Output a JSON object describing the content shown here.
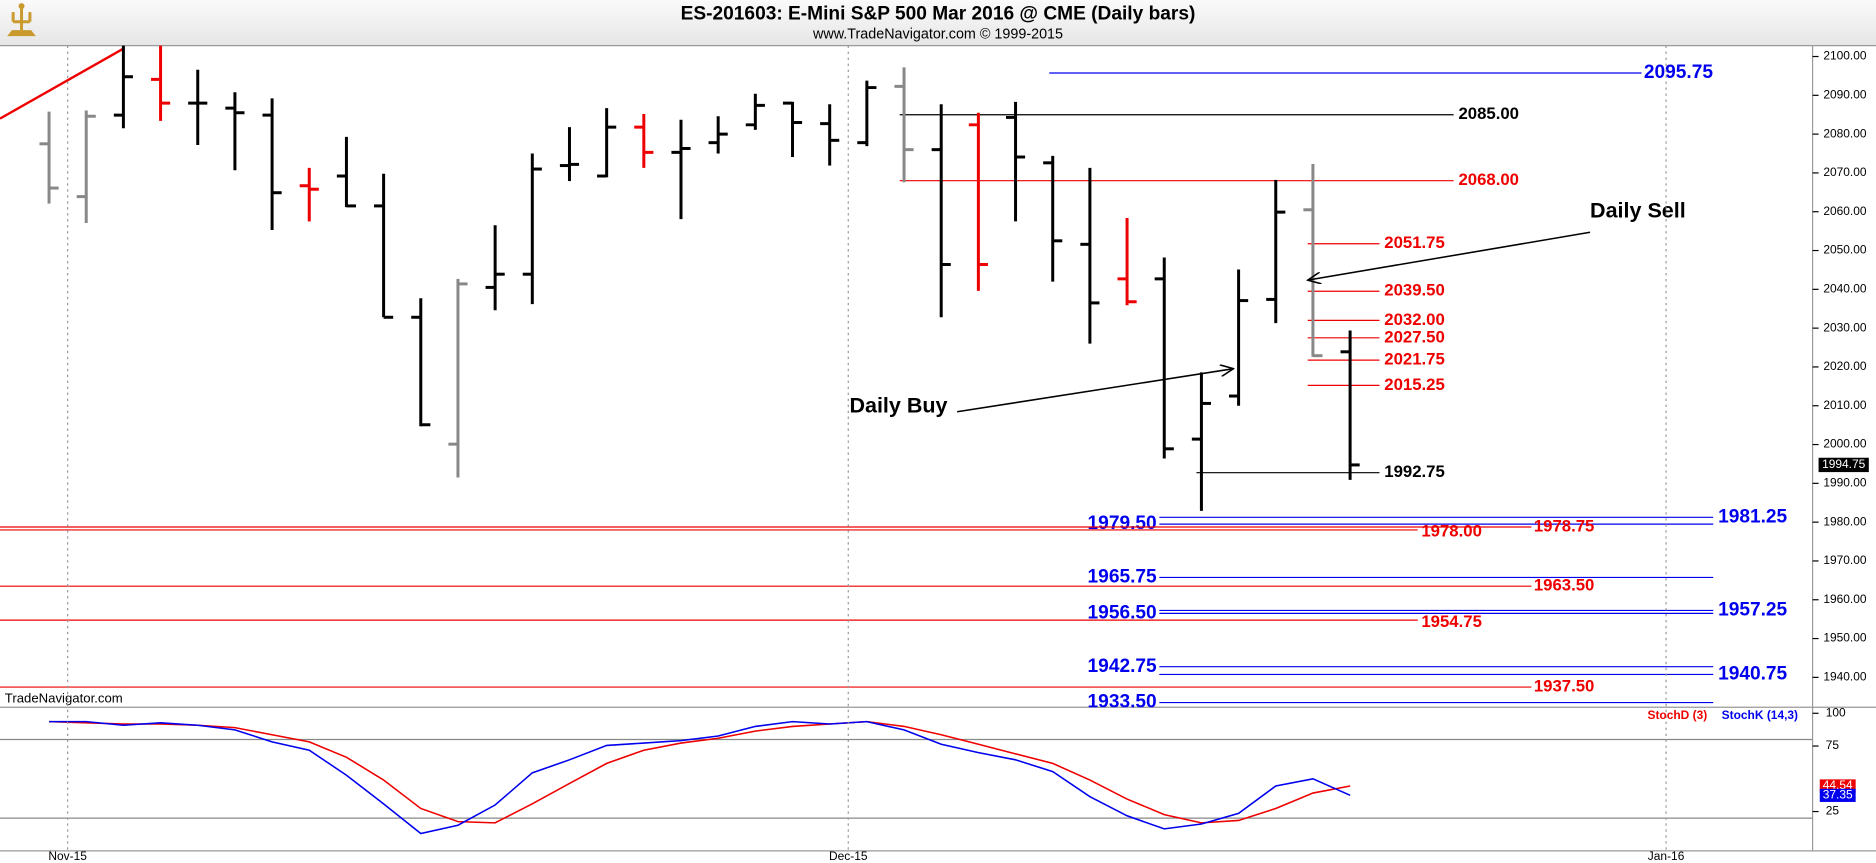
{
  "header": {
    "title": "ES-201603:  E-Mini S&P 500 Mar 2016 @ CME  (Daily bars)",
    "subtitle": "www.TradeNavigator.com © 1999-2015",
    "watermark": "TradeNavigator.com"
  },
  "chart_data": [
    {
      "type": "ohlc",
      "categories": [
        null,
        null,
        null,
        null,
        null,
        null,
        null,
        null,
        null,
        null,
        null,
        null,
        null,
        null,
        null,
        null,
        null,
        null,
        null,
        null,
        null,
        null,
        null,
        null,
        null,
        null,
        null,
        null,
        null,
        null,
        null,
        null,
        null,
        null,
        null,
        null
      ],
      "open": [
        2077.5,
        2063.9,
        2084.9,
        2094.1,
        2088.0,
        2086.7,
        2084.9,
        2066.7,
        2069.2,
        2061.5,
        2032.8,
        2000.1,
        2040.5,
        2043.9,
        2071.9,
        2069.2,
        2081.8,
        2075.3,
        2077.8,
        2082.4,
        2088.0,
        2082.7,
        2077.8,
        2092.3,
        2076.0,
        2082.4,
        2084.3,
        2072.6,
        2051.6,
        2042.7,
        2042.7,
        2001.4,
        2012.5,
        2037.4,
        2060.5,
        2023.9
      ],
      "high": [
        2085.8,
        2086.1,
        2103,
        2103,
        2096.6,
        2090.8,
        2089.2,
        2071.3,
        2079.3,
        2069.8,
        2037.7,
        2042.7,
        2056.5,
        2075.0,
        2081.8,
        2086.7,
        2085.2,
        2083.7,
        2084.6,
        2090.4,
        2088.3,
        2087.7,
        2093.8,
        2097.2,
        2087.7,
        2085.5,
        2088.3,
        2074.4,
        2071.3,
        2058.4,
        2048.2,
        2018.6,
        2045.1,
        2068.2,
        2072.3,
        2029.4
      ],
      "low": [
        2062.1,
        2057.1,
        2081.5,
        2083.4,
        2077.2,
        2070.7,
        2055.3,
        2057.5,
        2061.2,
        2032.8,
        2004.7,
        1991.5,
        2034.6,
        2036.2,
        2067.9,
        2068.9,
        2071.3,
        2058.1,
        2075.0,
        2081.1,
        2074.1,
        2071.9,
        2076.9,
        2067.6,
        2032.8,
        2039.6,
        2057.5,
        2042.0,
        2026.0,
        2035.9,
        1996.4,
        1982.9,
        2010.0,
        2031.3,
        2022.6,
        1990.9
      ],
      "close": [
        2066.1,
        2084.6,
        2094.8,
        2088.0,
        2088.0,
        2085.5,
        2064.9,
        2065.8,
        2061.5,
        2032.8,
        2005.1,
        2041.4,
        2043.9,
        2071.0,
        2072.2,
        2081.8,
        2075.3,
        2076.3,
        2080.0,
        2087.4,
        2083.0,
        2078.4,
        2092.0,
        2076.0,
        2046.4,
        2046.4,
        2074.1,
        2052.5,
        2036.5,
        2036.8,
        1998.9,
        2010.6,
        2037.1,
        2059.9,
        2022.9,
        1994.75
      ],
      "colors": [
        "#888888",
        "#888888",
        "#000000",
        "#ee0000",
        "#000000",
        "#000000",
        "#000000",
        "#ee0000",
        "#000000",
        "#000000",
        "#000000",
        "#888888",
        "#000000",
        "#000000",
        "#000000",
        "#000000",
        "#ee0000",
        "#000000",
        "#000000",
        "#000000",
        "#000000",
        "#000000",
        "#000000",
        "#888888",
        "#000000",
        "#ee0000",
        "#000000",
        "#000000",
        "#000000",
        "#ee0000",
        "#000000",
        "#000000",
        "#000000",
        "#000000",
        "#888888",
        "#000000"
      ],
      "ylim": [
        1932.6,
        2102.8
      ],
      "yticks": [
        {
          "value": 1940,
          "label": "1940.00"
        },
        {
          "value": 1950,
          "label": "1950.00"
        },
        {
          "value": 1960,
          "label": "1960.00"
        },
        {
          "value": 1970,
          "label": "1970.00"
        },
        {
          "value": 1980,
          "label": "1980.00"
        },
        {
          "value": 1990,
          "label": "1990.00"
        },
        {
          "value": 2000,
          "label": "2000.00"
        },
        {
          "value": 2010,
          "label": "2010.00"
        },
        {
          "value": 2020,
          "label": "2020.00"
        },
        {
          "value": 2030,
          "label": "2030.00"
        },
        {
          "value": 2040,
          "label": "2040.00"
        },
        {
          "value": 2050,
          "label": "2050.00"
        },
        {
          "value": 2060,
          "label": "2060.00"
        },
        {
          "value": 2070,
          "label": "2070.00"
        },
        {
          "value": 2080,
          "label": "2080.00"
        },
        {
          "value": 2090,
          "label": "2090.00"
        },
        {
          "value": 2100,
          "label": "2100.00"
        }
      ],
      "levels": [
        {
          "value": 2095.75,
          "label": "2095.75",
          "color": "#0000ee"
        },
        {
          "value": 2085.0,
          "label": "2085.00",
          "color": "#000000"
        },
        {
          "value": 2068.0,
          "label": "2068.00",
          "color": "#ee0000"
        },
        {
          "value": 2051.75,
          "label": "2051.75",
          "color": "#ee0000"
        },
        {
          "value": 2039.5,
          "label": "2039.50",
          "color": "#ee0000"
        },
        {
          "value": 2032.0,
          "label": "2032.00",
          "color": "#ee0000"
        },
        {
          "value": 2027.5,
          "label": "2027.50",
          "color": "#ee0000"
        },
        {
          "value": 2021.75,
          "label": "2021.75",
          "color": "#ee0000"
        },
        {
          "value": 2015.25,
          "label": "2015.25",
          "color": "#ee0000"
        },
        {
          "value": 1992.75,
          "label": "1992.75",
          "color": "#000000"
        },
        {
          "value": 1981.25,
          "label": "1981.25",
          "color": "#0000ee"
        },
        {
          "value": 1979.5,
          "label": "1979.50",
          "color": "#0000ee"
        },
        {
          "value": 1978.75,
          "label": "1978.75",
          "color": "#ee0000"
        },
        {
          "value": 1978.0,
          "label": "1978.00",
          "color": "#ee0000"
        },
        {
          "value": 1965.75,
          "label": "1965.75",
          "color": "#0000ee"
        },
        {
          "value": 1963.5,
          "label": "1963.50",
          "color": "#ee0000"
        },
        {
          "value": 1957.25,
          "label": "1957.25",
          "color": "#0000ee"
        },
        {
          "value": 1956.5,
          "label": "1956.50",
          "color": "#0000ee"
        },
        {
          "value": 1954.75,
          "label": "1954.75",
          "color": "#ee0000"
        },
        {
          "value": 1942.75,
          "label": "1942.75",
          "color": "#0000ee"
        },
        {
          "value": 1940.75,
          "label": "1940.75",
          "color": "#0000ee"
        },
        {
          "value": 1937.5,
          "label": "1937.50",
          "color": "#ee0000"
        },
        {
          "value": 1933.5,
          "label": "1933.50",
          "color": "#0000ee"
        }
      ],
      "annotations": [
        {
          "text": "Daily Buy"
        },
        {
          "text": "Daily Sell"
        }
      ]
    },
    {
      "type": "line",
      "categories": [
        null,
        null,
        null,
        null,
        null,
        null,
        null,
        null,
        null,
        null,
        null,
        null,
        null,
        null,
        null,
        null,
        null,
        null,
        null,
        null,
        null,
        null,
        null,
        null,
        null,
        null,
        null,
        null,
        null,
        null,
        null,
        null,
        null,
        null,
        null,
        null
      ],
      "series": [
        {
          "name": "StochD (3)",
          "color": "#ee0000",
          "values": [
            93.6,
            92.7,
            91.8,
            91.8,
            90.9,
            89.1,
            83.6,
            78.2,
            66.4,
            49.1,
            27.3,
            17.3,
            16.4,
            30.9,
            46.4,
            61.8,
            71.8,
            77.3,
            80.9,
            86.4,
            90.0,
            91.8,
            93.6,
            90.0,
            83.6,
            76.4,
            69.1,
            61.8,
            49.1,
            34.5,
            22.7,
            16.4,
            18.2,
            27.3,
            39.1,
            44.54
          ]
        },
        {
          "name": "StochK (14,3)",
          "color": "#0000ee",
          "values": [
            93.6,
            93.6,
            90.9,
            92.7,
            90.9,
            87.3,
            78.2,
            71.8,
            52.7,
            30.9,
            8.2,
            14.5,
            30.0,
            54.5,
            64.5,
            75.5,
            77.3,
            79.1,
            82.7,
            90.0,
            93.6,
            91.8,
            93.6,
            87.3,
            76.4,
            70.0,
            64.5,
            55.5,
            36.4,
            21.8,
            11.8,
            15.5,
            23.6,
            44.5,
            50.0,
            37.35
          ]
        }
      ],
      "ylim": [
        -5,
        105.5
      ],
      "yticks": [
        25,
        75,
        100
      ],
      "ref_lines": [
        80,
        20
      ],
      "xticks": [
        {
          "value": 0.5,
          "label": "Nov-15"
        },
        {
          "value": 21.5,
          "label": "Dec-15"
        },
        {
          "value": 43.5,
          "label": "Jan-16"
        }
      ]
    }
  ]
}
